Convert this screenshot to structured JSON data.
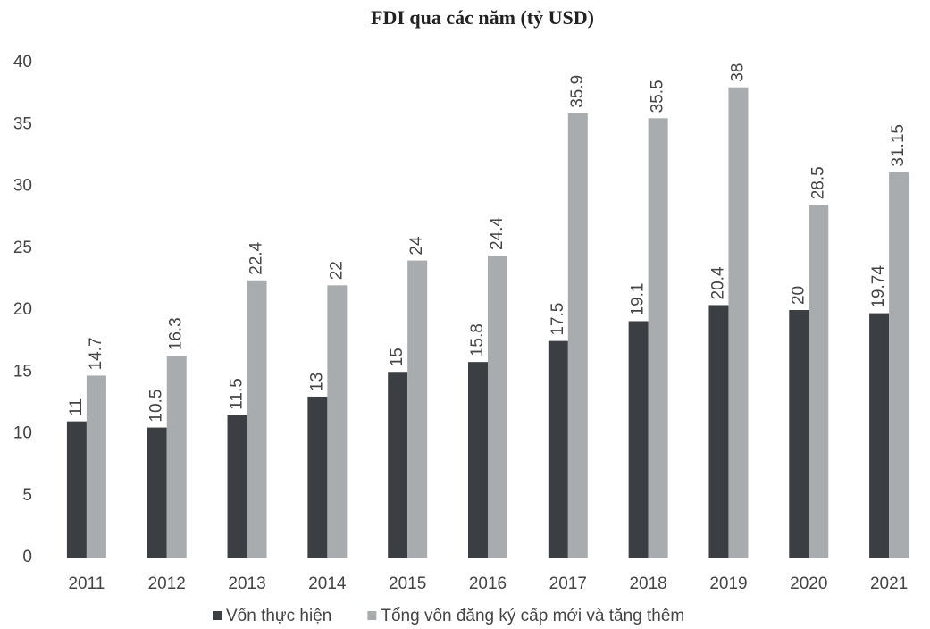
{
  "chart_data": {
    "type": "bar",
    "title": "FDI qua các năm (tỷ USD)",
    "categories": [
      "2011",
      "2012",
      "2013",
      "2014",
      "2015",
      "2016",
      "2017",
      "2018",
      "2019",
      "2020",
      "2021"
    ],
    "series": [
      {
        "name": "Vốn thực hiện",
        "color": "#3b3e42",
        "values": [
          11,
          10.5,
          11.5,
          13,
          15,
          15.8,
          17.5,
          19.1,
          20.4,
          20,
          19.74
        ]
      },
      {
        "name": "Tổng vốn đăng ký cấp mới và tăng thêm",
        "color": "#a9acaf",
        "values": [
          14.7,
          16.3,
          22.4,
          22,
          24,
          24.4,
          35.9,
          35.5,
          38,
          28.5,
          31.15
        ]
      }
    ],
    "ylim": [
      0,
      40
    ],
    "yticks": [
      0,
      5,
      10,
      15,
      20,
      25,
      30,
      35,
      40
    ],
    "grid": false,
    "legend": "bottom"
  }
}
